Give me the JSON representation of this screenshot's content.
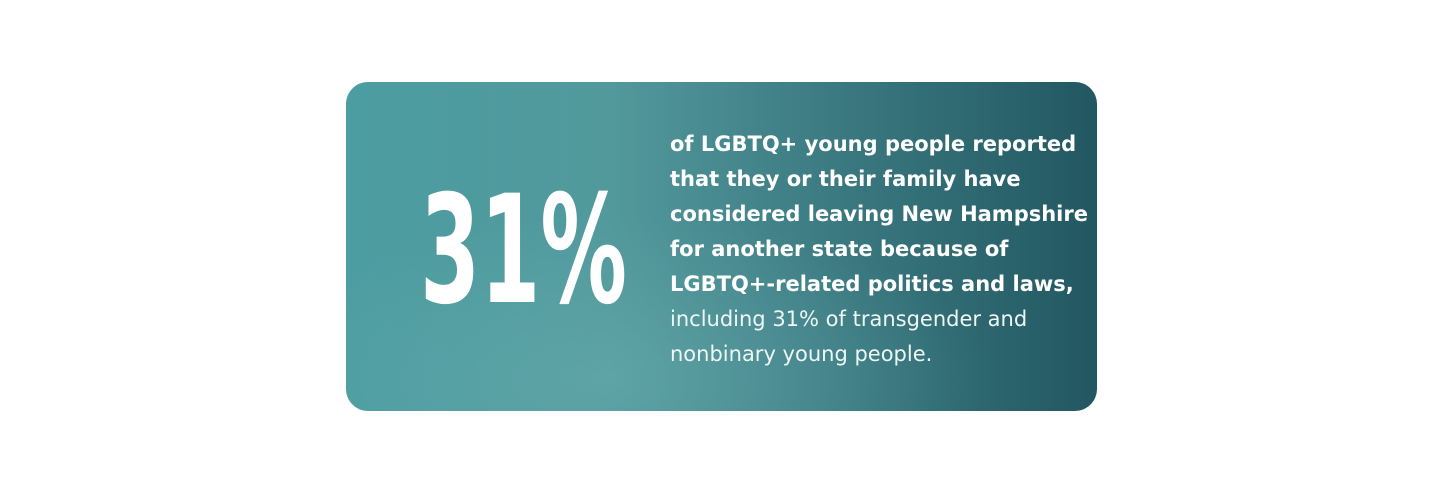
{
  "stat": "31%",
  "description": {
    "bold_lines": [
      "of LGBTQ+ young people reported",
      "that they or their family have",
      "considered leaving New Hampshire",
      "for another state because of",
      "LGBTQ+-related politics and laws,"
    ],
    "regular_lines": [
      "including 31% of transgender and",
      "nonbinary young people."
    ]
  }
}
